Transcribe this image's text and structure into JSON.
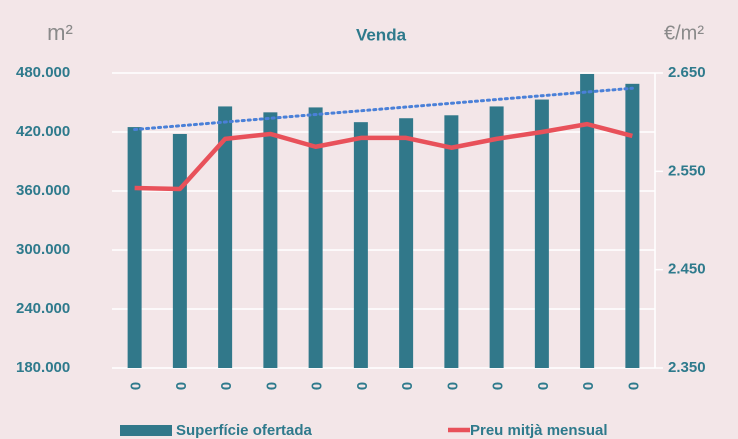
{
  "chart_data": {
    "type": "bar_line",
    "title": "Venda",
    "y_label": "m²",
    "y2_label": "€/m²",
    "categories": [
      "0",
      "0",
      "0",
      "0",
      "0",
      "0",
      "0",
      "0",
      "0",
      "0",
      "0",
      "0"
    ],
    "series": [
      {
        "name": "Superfície ofertada",
        "type": "bar",
        "color": "#31788a",
        "axis": "y",
        "trendline": true,
        "trend_color": "#4a80d8",
        "values": [
          425000,
          418000,
          446000,
          440000,
          445000,
          430000,
          434000,
          437000,
          446000,
          453000,
          479000,
          469000
        ]
      },
      {
        "name": "Preu mitjà mensual",
        "type": "line",
        "color": "#e8515a",
        "axis": "y2",
        "values": [
          2533,
          2532,
          2583,
          2588,
          2575,
          2584,
          2584,
          2574,
          2583,
          2590,
          2598,
          2586
        ]
      }
    ],
    "ylim": [
      180000,
      480000
    ],
    "yticks": [
      {
        "value": 180000,
        "label": "180.000"
      },
      {
        "value": 240000,
        "label": "240.000"
      },
      {
        "value": 300000,
        "label": "300.000"
      },
      {
        "value": 360000,
        "label": "360.000"
      },
      {
        "value": 420000,
        "label": "420.000"
      },
      {
        "value": 480000,
        "label": "480.000"
      }
    ],
    "y2lim": [
      2350,
      2650
    ],
    "y2ticks": [
      {
        "value": 2350,
        "label": "2.350"
      },
      {
        "value": 2450,
        "label": "2.450"
      },
      {
        "value": 2550,
        "label": "2.550"
      },
      {
        "value": 2650,
        "label": "2.650"
      }
    ],
    "grid": true
  }
}
